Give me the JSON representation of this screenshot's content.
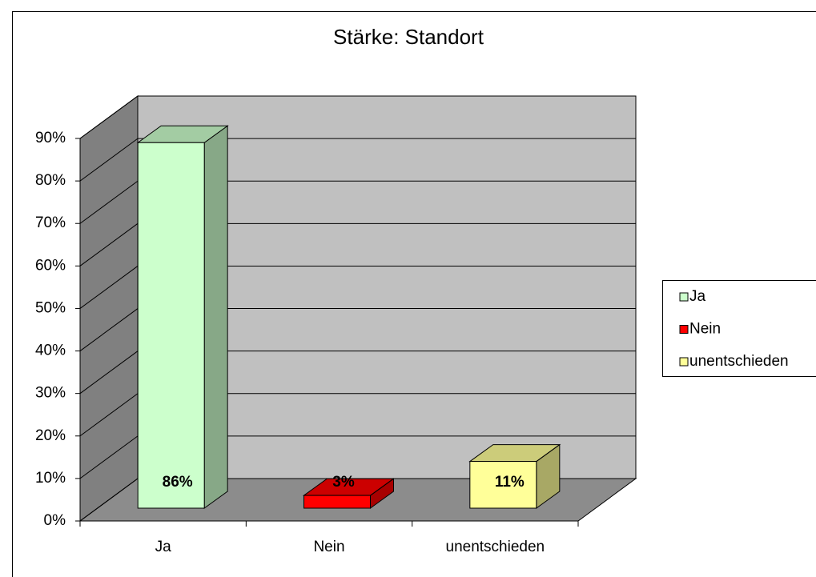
{
  "chart_data": {
    "type": "bar3d",
    "title": "Stärke: Standort",
    "categories": [
      "Ja",
      "Nein",
      "unentschieden"
    ],
    "values": [
      86,
      3,
      11
    ],
    "value_labels": [
      "86%",
      "3%",
      "11%"
    ],
    "colors": [
      "#ccffcc",
      "#ff0000",
      "#ffff99"
    ],
    "ylim": [
      0,
      90
    ],
    "yticks": [
      {
        "value": 0,
        "label": "0%"
      },
      {
        "value": 10,
        "label": "10%"
      },
      {
        "value": 20,
        "label": "20%"
      },
      {
        "value": 30,
        "label": "30%"
      },
      {
        "value": 40,
        "label": "40%"
      },
      {
        "value": 50,
        "label": "50%"
      },
      {
        "value": 60,
        "label": "60%"
      },
      {
        "value": 70,
        "label": "70%"
      },
      {
        "value": 80,
        "label": "80%"
      },
      {
        "value": 90,
        "label": "90%"
      }
    ],
    "grid": true,
    "legend": "right"
  }
}
